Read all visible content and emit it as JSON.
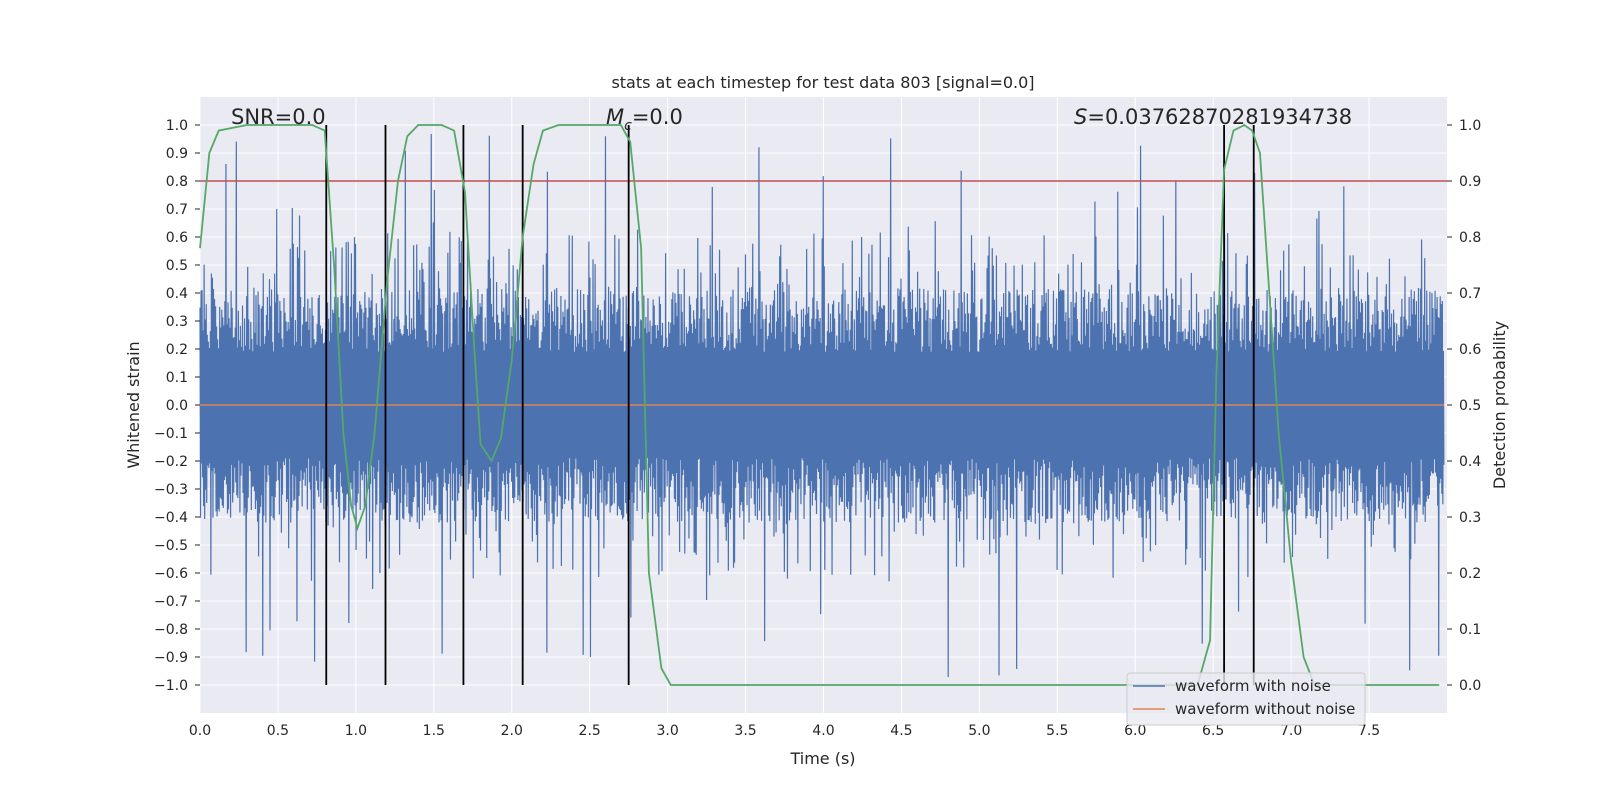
{
  "chart_data": {
    "type": "line",
    "title": "stats at each timestep for test data 803 [signal=0.0]",
    "xlabel": "Time (s)",
    "ylabel": "Whitened strain",
    "y2label": "Detection probability",
    "xlim": [
      0.0,
      8.0
    ],
    "ylim": [
      -1.1,
      1.1
    ],
    "y2lim": [
      -0.05,
      1.05
    ],
    "x_ticks": [
      "0.0",
      "0.5",
      "1.0",
      "1.5",
      "2.0",
      "2.5",
      "3.0",
      "3.5",
      "4.0",
      "4.5",
      "5.0",
      "5.5",
      "6.0",
      "6.5",
      "7.0",
      "7.5"
    ],
    "y_ticks": [
      "1.0",
      "0.9",
      "0.8",
      "0.7",
      "0.6",
      "0.5",
      "0.4",
      "0.3",
      "0.2",
      "0.1",
      "0.0",
      "−0.1",
      "−0.2",
      "−0.3",
      "−0.4",
      "−0.5",
      "−0.6",
      "−0.7",
      "−0.8",
      "−0.9",
      "−1.0"
    ],
    "y2_ticks": [
      "1.0",
      "0.9",
      "0.8",
      "0.7",
      "0.6",
      "0.5",
      "0.4",
      "0.3",
      "0.2",
      "0.1",
      "0.0"
    ],
    "annotations": {
      "snr": "SNR=0.0",
      "mc_symbol": "M",
      "mc_sub": "c",
      "mc_value": "=0.0",
      "s_symbol": "S",
      "s_value": "=0.03762870281934738"
    },
    "series": [
      {
        "name": "waveform with noise",
        "color": "#4c72b0",
        "typical_amplitude": 0.42,
        "peak_amplitude": 0.98
      },
      {
        "name": "waveform without noise",
        "color": "#dd8452",
        "value": 0.0
      },
      {
        "name": "detection probability",
        "color": "#55a868",
        "axis": "right",
        "points": [
          [
            0.0,
            0.78
          ],
          [
            0.06,
            0.95
          ],
          [
            0.12,
            0.99
          ],
          [
            0.3,
            1.0
          ],
          [
            0.5,
            1.0
          ],
          [
            0.72,
            1.0
          ],
          [
            0.8,
            0.99
          ],
          [
            0.86,
            0.75
          ],
          [
            0.92,
            0.45
          ],
          [
            0.97,
            0.32
          ],
          [
            1.01,
            0.28
          ],
          [
            1.06,
            0.32
          ],
          [
            1.12,
            0.45
          ],
          [
            1.2,
            0.72
          ],
          [
            1.27,
            0.9
          ],
          [
            1.33,
            0.98
          ],
          [
            1.4,
            1.0
          ],
          [
            1.55,
            1.0
          ],
          [
            1.63,
            0.99
          ],
          [
            1.7,
            0.88
          ],
          [
            1.76,
            0.6
          ],
          [
            1.8,
            0.43
          ],
          [
            1.87,
            0.4
          ],
          [
            1.93,
            0.44
          ],
          [
            2.0,
            0.58
          ],
          [
            2.07,
            0.8
          ],
          [
            2.14,
            0.93
          ],
          [
            2.2,
            0.99
          ],
          [
            2.3,
            1.0
          ],
          [
            2.7,
            1.0
          ],
          [
            2.76,
            0.97
          ],
          [
            2.83,
            0.78
          ],
          [
            2.88,
            0.2
          ],
          [
            2.96,
            0.03
          ],
          [
            3.02,
            0.0
          ],
          [
            3.5,
            0.0
          ],
          [
            4.5,
            0.0
          ],
          [
            5.5,
            0.0
          ],
          [
            6.4,
            0.0
          ],
          [
            6.48,
            0.08
          ],
          [
            6.52,
            0.55
          ],
          [
            6.57,
            0.92
          ],
          [
            6.63,
            0.99
          ],
          [
            6.7,
            1.0
          ],
          [
            6.75,
            0.99
          ],
          [
            6.8,
            0.95
          ],
          [
            6.86,
            0.7
          ],
          [
            6.92,
            0.45
          ],
          [
            7.0,
            0.22
          ],
          [
            7.08,
            0.05
          ],
          [
            7.15,
            0.0
          ],
          [
            7.5,
            0.0
          ],
          [
            7.95,
            0.0
          ]
        ]
      },
      {
        "name": "threshold",
        "color": "#c44e52",
        "axis": "right",
        "value": 0.9
      }
    ],
    "vertical_lines": [
      0.81,
      1.19,
      1.69,
      2.07,
      2.75,
      6.57,
      6.76
    ],
    "legend": {
      "placement": "lower right",
      "entries": [
        "waveform with noise",
        "waveform without noise"
      ]
    },
    "grid": true
  }
}
